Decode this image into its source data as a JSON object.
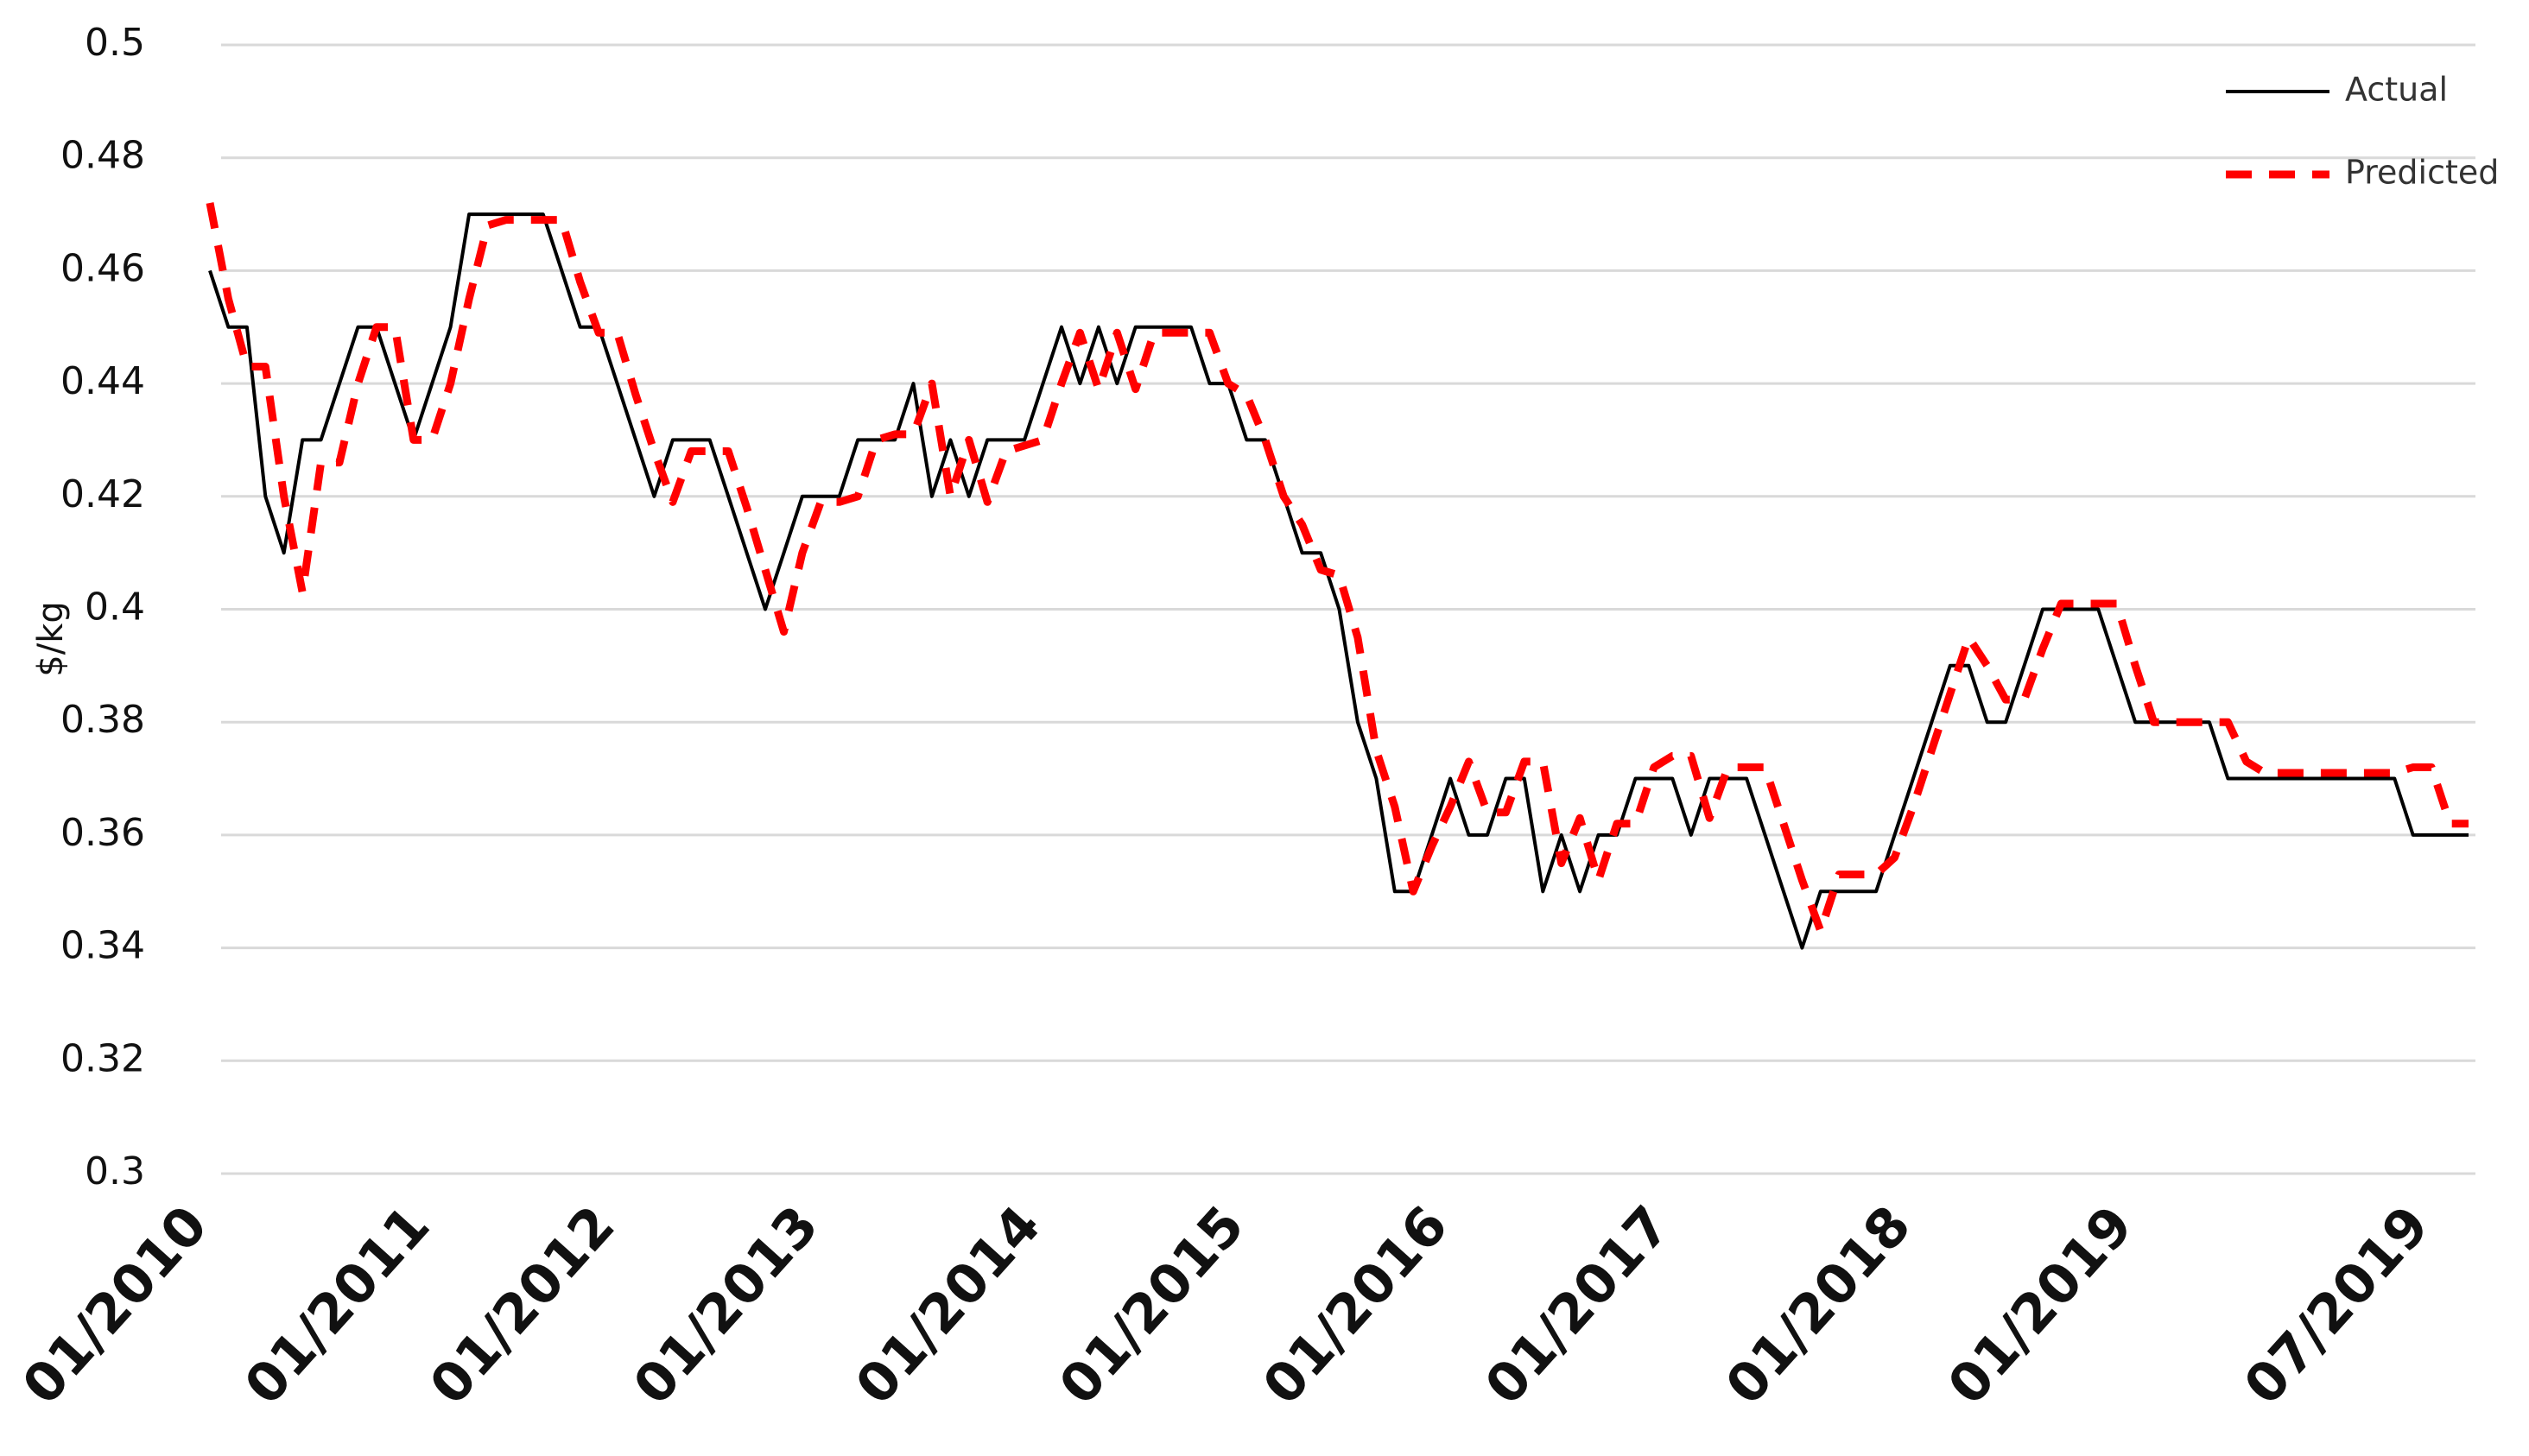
{
  "chart_data": {
    "type": "line",
    "ylabel": "$/kg",
    "ylim": [
      0.3,
      0.5
    ],
    "yticks": [
      0.3,
      0.32,
      0.34,
      0.36,
      0.38,
      0.4,
      0.42,
      0.44,
      0.46,
      0.48,
      0.5
    ],
    "grid": true,
    "legend": "top-right",
    "categories": [
      "01/2010",
      null,
      null,
      null,
      null,
      null,
      null,
      null,
      null,
      null,
      null,
      null,
      "01/2011",
      null,
      null,
      null,
      null,
      null,
      null,
      null,
      null,
      null,
      "01/2012",
      null,
      null,
      null,
      null,
      null,
      null,
      null,
      null,
      null,
      null,
      "01/2013",
      null,
      null,
      null,
      null,
      null,
      null,
      null,
      null,
      null,
      null,
      null,
      "01/2014",
      null,
      null,
      null,
      null,
      null,
      null,
      null,
      null,
      null,
      null,
      "01/2015",
      null,
      null,
      null,
      null,
      null,
      null,
      null,
      null,
      null,
      null,
      "01/2016",
      null,
      null,
      null,
      null,
      null,
      null,
      null,
      null,
      null,
      null,
      null,
      "01/2017",
      null,
      null,
      null,
      null,
      null,
      null,
      null,
      null,
      null,
      null,
      null,
      null,
      "01/2018",
      null,
      null,
      null,
      null,
      null,
      null,
      null,
      null,
      null,
      null,
      null,
      "01/2019",
      null,
      null,
      null,
      null,
      null,
      null,
      null,
      null,
      null,
      null,
      null,
      null,
      null,
      null,
      null,
      "07/2019",
      null,
      null
    ],
    "series": [
      {
        "name": "Actual",
        "color": "#000000",
        "dash": false,
        "values": [
          0.46,
          0.45,
          0.45,
          0.42,
          0.41,
          0.43,
          0.43,
          0.44,
          0.45,
          0.45,
          0.44,
          0.43,
          0.44,
          0.45,
          0.47,
          0.47,
          0.47,
          0.47,
          0.47,
          0.46,
          0.45,
          0.45,
          0.44,
          0.43,
          0.42,
          0.43,
          0.43,
          0.43,
          0.42,
          0.41,
          0.4,
          0.41,
          0.42,
          0.42,
          0.42,
          0.43,
          0.43,
          0.43,
          0.44,
          0.42,
          0.43,
          0.42,
          0.43,
          0.43,
          0.43,
          0.44,
          0.45,
          0.44,
          0.45,
          0.44,
          0.45,
          0.45,
          0.45,
          0.45,
          0.44,
          0.44,
          0.43,
          0.43,
          0.42,
          0.41,
          0.41,
          0.4,
          0.38,
          0.37,
          0.35,
          0.35,
          0.36,
          0.37,
          0.36,
          0.36,
          0.37,
          0.37,
          0.35,
          0.36,
          0.35,
          0.36,
          0.36,
          0.37,
          0.37,
          0.37,
          0.36,
          0.37,
          0.37,
          0.37,
          0.36,
          0.35,
          0.34,
          0.35,
          0.35,
          0.35,
          0.35,
          0.36,
          0.37,
          0.38,
          0.39,
          0.39,
          0.38,
          0.38,
          0.39,
          0.4,
          0.4,
          0.4,
          0.4,
          0.39,
          0.38,
          0.38,
          0.38,
          0.38,
          0.38,
          0.37,
          0.37,
          0.37,
          0.37,
          0.37,
          0.37,
          0.37,
          0.37,
          0.37,
          0.37,
          0.36,
          0.36,
          0.36,
          0.36
        ]
      },
      {
        "name": "Predicted",
        "color": "#ff0000",
        "dash": true,
        "values": [
          0.472,
          0.455,
          0.443,
          0.443,
          0.42,
          0.403,
          0.426,
          0.426,
          0.44,
          0.45,
          0.45,
          0.43,
          0.43,
          0.44,
          0.455,
          0.468,
          0.469,
          0.469,
          0.469,
          0.469,
          0.458,
          0.449,
          0.449,
          0.438,
          0.428,
          0.419,
          0.428,
          0.428,
          0.428,
          0.418,
          0.407,
          0.396,
          0.41,
          0.419,
          0.419,
          0.42,
          0.43,
          0.431,
          0.431,
          0.44,
          0.42,
          0.43,
          0.419,
          0.428,
          0.429,
          0.43,
          0.44,
          0.449,
          0.439,
          0.449,
          0.439,
          0.449,
          0.449,
          0.449,
          0.449,
          0.44,
          0.438,
          0.43,
          0.42,
          0.415,
          0.407,
          0.406,
          0.395,
          0.375,
          0.365,
          0.35,
          0.358,
          0.365,
          0.373,
          0.364,
          0.364,
          0.373,
          0.373,
          0.355,
          0.363,
          0.352,
          0.362,
          0.362,
          0.372,
          0.374,
          0.374,
          0.363,
          0.372,
          0.372,
          0.372,
          0.362,
          0.352,
          0.343,
          0.353,
          0.353,
          0.353,
          0.356,
          0.365,
          0.375,
          0.385,
          0.395,
          0.39,
          0.384,
          0.384,
          0.393,
          0.401,
          0.401,
          0.401,
          0.401,
          0.39,
          0.38,
          0.38,
          0.38,
          0.38,
          0.38,
          0.373,
          0.371,
          0.371,
          0.371,
          0.371,
          0.371,
          0.371,
          0.371,
          0.371,
          0.372,
          0.372,
          0.362,
          0.362
        ]
      }
    ]
  }
}
